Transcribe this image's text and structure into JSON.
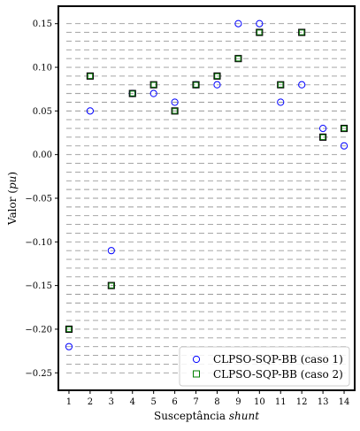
{
  "chart_data": {
    "type": "scatter",
    "xlabel": "Susceptância",
    "xlabel_italic": "shunt",
    "ylabel": "Valor (",
    "ylabel_italic": "pu",
    "ylabel_close": ")",
    "xlim": [
      0.5,
      14.5
    ],
    "ylim": [
      -0.27,
      0.17
    ],
    "x_ticks": [
      1,
      2,
      3,
      4,
      5,
      6,
      7,
      8,
      9,
      10,
      11,
      12,
      13,
      14
    ],
    "y_ticks": [
      -0.25,
      -0.2,
      -0.15,
      -0.1,
      -0.05,
      0.0,
      0.05,
      0.1,
      0.15
    ],
    "y_tick_labels": [
      "−0.25",
      "−0.20",
      "−0.15",
      "−0.10",
      "−0.05",
      "0.00",
      "0.05",
      "0.10",
      "0.15"
    ],
    "grid": "horizontal dashed",
    "grid_step": 0.01,
    "legend_position": "bottom-right",
    "series": [
      {
        "name": "CLPSO-SQP-BB (caso 1)",
        "marker": "circle",
        "color": "#0000ff",
        "x": [
          1,
          2,
          3,
          4,
          5,
          6,
          7,
          8,
          9,
          10,
          11,
          12,
          13,
          14
        ],
        "y": [
          -0.22,
          0.05,
          -0.11,
          0.07,
          0.07,
          0.06,
          0.08,
          0.08,
          0.15,
          0.15,
          0.06,
          0.08,
          0.03,
          0.01
        ]
      },
      {
        "name": "CLPSO-SQP-BB (caso 2)",
        "marker": "square",
        "color": "#008000",
        "x": [
          1,
          2,
          3,
          4,
          5,
          6,
          7,
          8,
          9,
          10,
          11,
          12,
          13,
          14
        ],
        "y": [
          -0.2,
          0.09,
          -0.15,
          0.07,
          0.08,
          0.05,
          0.08,
          0.09,
          0.11,
          0.14,
          0.08,
          0.14,
          0.02,
          0.03
        ]
      }
    ]
  }
}
